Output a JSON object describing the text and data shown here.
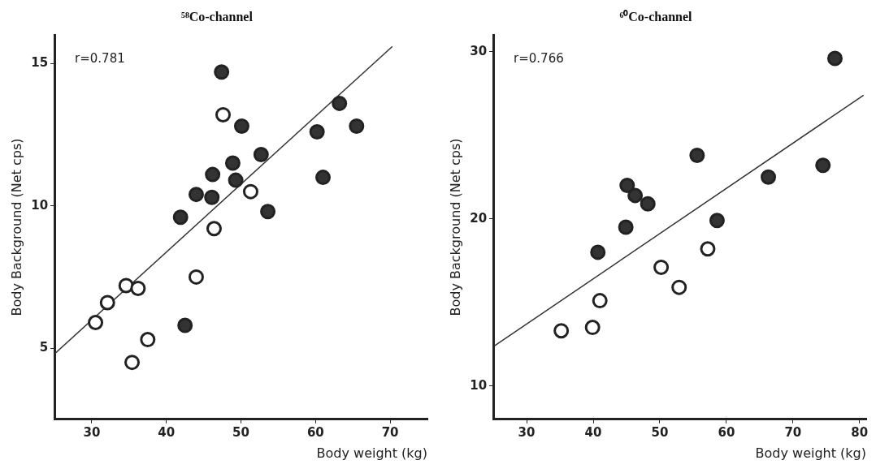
{
  "chart_data": [
    {
      "type": "scatter",
      "title": "⁵⁸Co-channel",
      "xlabel": "Body weight (kg)",
      "ylabel": "Body Background (Net cps)",
      "annotations": [
        "r=0.781"
      ],
      "xlim": [
        25,
        75
      ],
      "ylim": [
        2.5,
        16
      ],
      "xticks": [
        30,
        40,
        50,
        60,
        70
      ],
      "yticks": [
        5,
        10,
        15
      ],
      "grid": false,
      "marker": "circle",
      "series": [
        {
          "color": "#333333",
          "x": [
            47.4,
            50.1,
            52.7,
            48.9,
            46.2,
            49.3,
            44.0,
            46.1,
            41.9,
            53.6,
            60.2,
            63.2,
            65.5,
            61.0,
            42.5
          ],
          "values": [
            14.7,
            12.8,
            11.8,
            11.5,
            11.1,
            10.9,
            10.4,
            10.3,
            9.6,
            9.8,
            12.6,
            13.6,
            12.8,
            11.0,
            5.8
          ]
        },
        {
          "color": "#ffffff",
          "x": [
            47.6,
            51.3,
            46.4,
            44.0,
            34.6,
            36.2,
            32.1,
            30.5,
            37.5,
            35.4
          ],
          "values": [
            13.2,
            10.5,
            9.2,
            7.5,
            7.2,
            7.1,
            6.6,
            5.9,
            5.3,
            4.5
          ]
        },
        {
          "type": "line",
          "color": "#333333",
          "marker": "none",
          "x": [
            25,
            70.3
          ],
          "values": [
            4.8,
            15.6
          ]
        }
      ]
    },
    {
      "type": "scatter",
      "title": "⁶⁰Co-channel",
      "xlabel": "Body weight (kg)",
      "ylabel": "Body Background (Net cps)",
      "annotations": [
        "r=0.766"
      ],
      "xlim": [
        25,
        81
      ],
      "ylim": [
        8,
        31
      ],
      "xticks": [
        30,
        40,
        50,
        60,
        70,
        80
      ],
      "yticks": [
        10,
        20,
        30
      ],
      "grid": false,
      "marker": "circle",
      "series": [
        {
          "color": "#333333",
          "x": [
            76.3,
            55.6,
            74.5,
            66.3,
            45.1,
            46.3,
            48.2,
            44.9,
            58.6,
            40.7
          ],
          "values": [
            29.6,
            23.8,
            23.2,
            22.5,
            22.0,
            21.4,
            20.9,
            19.5,
            19.9,
            18.0
          ]
        },
        {
          "color": "#ffffff",
          "x": [
            57.2,
            50.2,
            52.9,
            41.0,
            39.9,
            35.2
          ],
          "values": [
            18.2,
            17.1,
            15.9,
            15.1,
            13.5,
            13.3
          ]
        },
        {
          "type": "line",
          "color": "#333333",
          "marker": "none",
          "x": [
            25.2,
            80.6
          ],
          "values": [
            12.4,
            27.4
          ]
        }
      ]
    }
  ]
}
